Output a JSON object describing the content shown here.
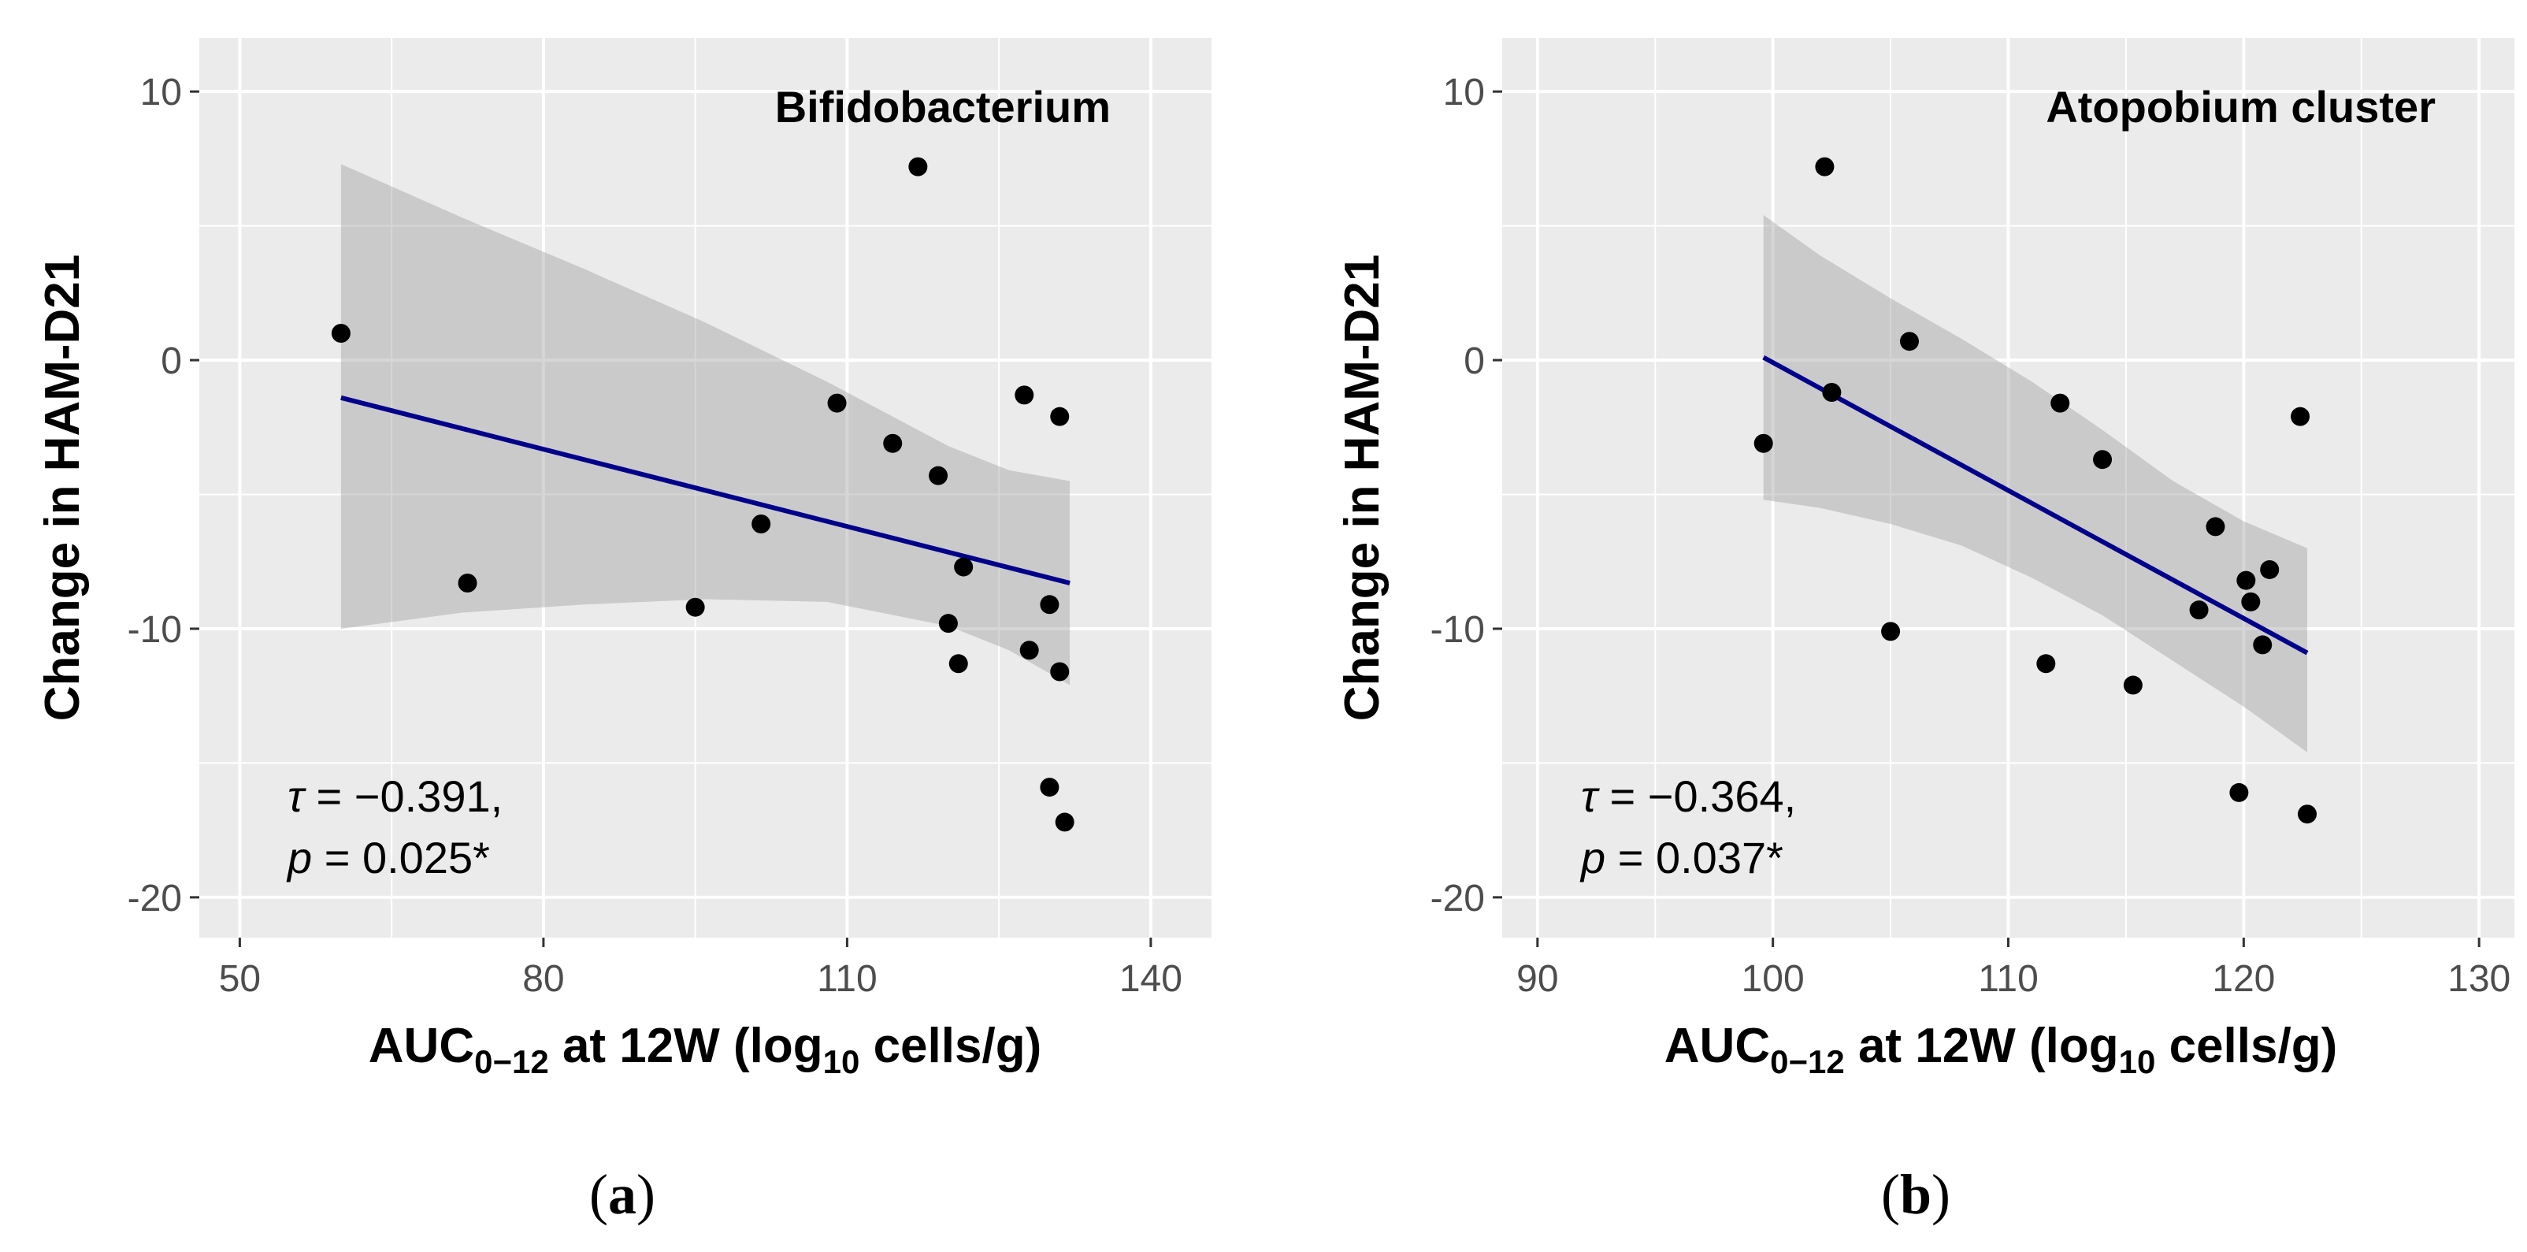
{
  "colors": {
    "panel_bg": "#ebebeb",
    "grid": "#ffffff",
    "point": "#000000",
    "line": "#00008b",
    "band": "#999999"
  },
  "chart_data": [
    {
      "type": "scatter",
      "id": "a",
      "title": "Bifidobacterium",
      "caption": {
        "open": "(",
        "letter": "a",
        "close": ")"
      },
      "xlabel": {
        "pre": "AUC",
        "sub": "0−12",
        "mid": " at 12W (log",
        "sub2": "10",
        "post": " cells/g)"
      },
      "ylabel": "Change in HAM-D21",
      "xlim": [
        46,
        146
      ],
      "ylim": [
        -21.5,
        12
      ],
      "xticks": [
        50,
        80,
        110,
        140
      ],
      "xminor": [
        65,
        95,
        125
      ],
      "yticks": [
        10,
        0,
        -10,
        -20
      ],
      "yminor": [
        5,
        -5,
        -15
      ],
      "points": [
        {
          "x": 60,
          "y": 1
        },
        {
          "x": 72.5,
          "y": -8.3
        },
        {
          "x": 95,
          "y": -9.2
        },
        {
          "x": 101.5,
          "y": -6.1
        },
        {
          "x": 109,
          "y": -1.6
        },
        {
          "x": 114.5,
          "y": -3.1
        },
        {
          "x": 117,
          "y": 7.2
        },
        {
          "x": 119,
          "y": -4.3
        },
        {
          "x": 120,
          "y": -9.8
        },
        {
          "x": 121,
          "y": -11.3
        },
        {
          "x": 121.5,
          "y": -7.7
        },
        {
          "x": 127.5,
          "y": -1.3
        },
        {
          "x": 128,
          "y": -10.8
        },
        {
          "x": 130,
          "y": -9.1
        },
        {
          "x": 130,
          "y": -15.9
        },
        {
          "x": 131,
          "y": -2.1
        },
        {
          "x": 131,
          "y": -11.6
        },
        {
          "x": 131.5,
          "y": -17.2
        }
      ],
      "fit_line": {
        "x": [
          60,
          132
        ],
        "y": [
          -1.4,
          -8.3
        ]
      },
      "ci_band": {
        "x": [
          60,
          72,
          84,
          96,
          108,
          120,
          126,
          132
        ],
        "upper": [
          7.3,
          5.3,
          3.4,
          1.4,
          -0.8,
          -3.2,
          -4.1,
          -4.5
        ],
        "lower": [
          -10.0,
          -9.4,
          -9.1,
          -8.9,
          -9.0,
          -9.9,
          -10.8,
          -12.1
        ]
      },
      "annotation": {
        "tau_sym": "τ",
        "tau_val": " = −0.391,",
        "p_sym": "p",
        "p_val": " = 0.025*"
      }
    },
    {
      "type": "scatter",
      "id": "b",
      "title": "Atopobium cluster",
      "caption": {
        "open": "(",
        "letter": "b",
        "close": ")"
      },
      "xlabel": {
        "pre": "AUC",
        "sub": "0−12",
        "mid": " at 12W (log",
        "sub2": "10",
        "post": " cells/g)"
      },
      "ylabel": "Change in HAM-D21",
      "xlim": [
        88.5,
        131.5
      ],
      "ylim": [
        -21.5,
        12
      ],
      "xticks": [
        90,
        100,
        110,
        120,
        130
      ],
      "xminor": [
        95,
        105,
        115,
        125
      ],
      "yticks": [
        10,
        0,
        -10,
        -20
      ],
      "yminor": [
        5,
        -5,
        -15
      ],
      "points": [
        {
          "x": 99.6,
          "y": -3.1
        },
        {
          "x": 102.2,
          "y": 7.2
        },
        {
          "x": 102.5,
          "y": -1.2
        },
        {
          "x": 105.0,
          "y": -10.1
        },
        {
          "x": 105.8,
          "y": 0.7
        },
        {
          "x": 111.6,
          "y": -11.3
        },
        {
          "x": 112.2,
          "y": -1.6
        },
        {
          "x": 114.0,
          "y": -3.7
        },
        {
          "x": 115.3,
          "y": -12.1
        },
        {
          "x": 118.1,
          "y": -9.3
        },
        {
          "x": 118.8,
          "y": -6.2
        },
        {
          "x": 119.8,
          "y": -16.1
        },
        {
          "x": 120.1,
          "y": -8.2
        },
        {
          "x": 120.3,
          "y": -9.0
        },
        {
          "x": 120.8,
          "y": -10.6
        },
        {
          "x": 121.1,
          "y": -7.8
        },
        {
          "x": 122.4,
          "y": -2.1
        },
        {
          "x": 122.7,
          "y": -16.9
        }
      ],
      "fit_line": {
        "x": [
          99.6,
          122.7
        ],
        "y": [
          0.1,
          -10.9
        ]
      },
      "ci_band": {
        "x": [
          99.6,
          102,
          105,
          108,
          111,
          114,
          117,
          120,
          122.7
        ],
        "upper": [
          5.4,
          3.9,
          2.3,
          0.8,
          -0.8,
          -2.6,
          -4.5,
          -6.0,
          -7.0
        ],
        "lower": [
          -5.2,
          -5.5,
          -6.1,
          -6.9,
          -8.1,
          -9.5,
          -11.2,
          -12.9,
          -14.6
        ]
      },
      "annotation": {
        "tau_sym": "τ",
        "tau_val": " = −0.364,",
        "p_sym": "p",
        "p_val": " = 0.037*"
      }
    }
  ]
}
